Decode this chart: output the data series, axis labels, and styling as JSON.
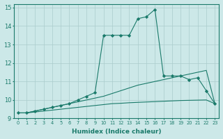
{
  "xlabel": "Humidex (Indice chaleur)",
  "ylabel": "",
  "bg_color": "#cce8e8",
  "grid_color": "#aacccc",
  "line_color": "#1a7a6a",
  "xlim": [
    -0.5,
    23.5
  ],
  "ylim": [
    9.0,
    15.2
  ],
  "yticks": [
    9,
    10,
    11,
    12,
    13,
    14,
    15
  ],
  "xticks": [
    0,
    1,
    2,
    3,
    4,
    5,
    6,
    7,
    8,
    9,
    10,
    11,
    12,
    13,
    14,
    15,
    16,
    17,
    18,
    19,
    20,
    21,
    22,
    23
  ],
  "series": [
    {
      "x": [
        0,
        1,
        2,
        3,
        4,
        5,
        6,
        7,
        8,
        9,
        10,
        11,
        12,
        13,
        14,
        15,
        16,
        17,
        18,
        19,
        20,
        21,
        22,
        23
      ],
      "y": [
        9.3,
        9.3,
        9.35,
        9.4,
        9.45,
        9.5,
        9.55,
        9.6,
        9.65,
        9.7,
        9.75,
        9.8,
        9.82,
        9.85,
        9.87,
        9.89,
        9.91,
        9.93,
        9.95,
        9.97,
        9.98,
        9.99,
        10.0,
        9.8
      ],
      "marker": null
    },
    {
      "x": [
        0,
        1,
        2,
        3,
        4,
        5,
        6,
        7,
        8,
        9,
        10,
        11,
        12,
        13,
        14,
        15,
        16,
        17,
        18,
        19,
        20,
        21,
        22,
        23
      ],
      "y": [
        9.3,
        9.3,
        9.4,
        9.5,
        9.6,
        9.7,
        9.8,
        9.9,
        10.0,
        10.1,
        10.2,
        10.35,
        10.5,
        10.65,
        10.8,
        10.9,
        11.0,
        11.1,
        11.2,
        11.3,
        11.4,
        11.5,
        11.6,
        9.8
      ],
      "marker": null
    },
    {
      "x": [
        0,
        1,
        2,
        3,
        4,
        5,
        6,
        7,
        8,
        9,
        10,
        11,
        12,
        13,
        14,
        15,
        16,
        17,
        18,
        19,
        20,
        21,
        22,
        23
      ],
      "y": [
        9.3,
        9.3,
        9.4,
        9.5,
        9.6,
        9.7,
        9.8,
        10.0,
        10.2,
        10.4,
        13.5,
        13.5,
        13.5,
        13.5,
        14.4,
        14.5,
        14.9,
        11.3,
        11.3,
        11.3,
        11.1,
        11.2,
        10.5,
        9.8
      ],
      "marker": "D"
    }
  ]
}
